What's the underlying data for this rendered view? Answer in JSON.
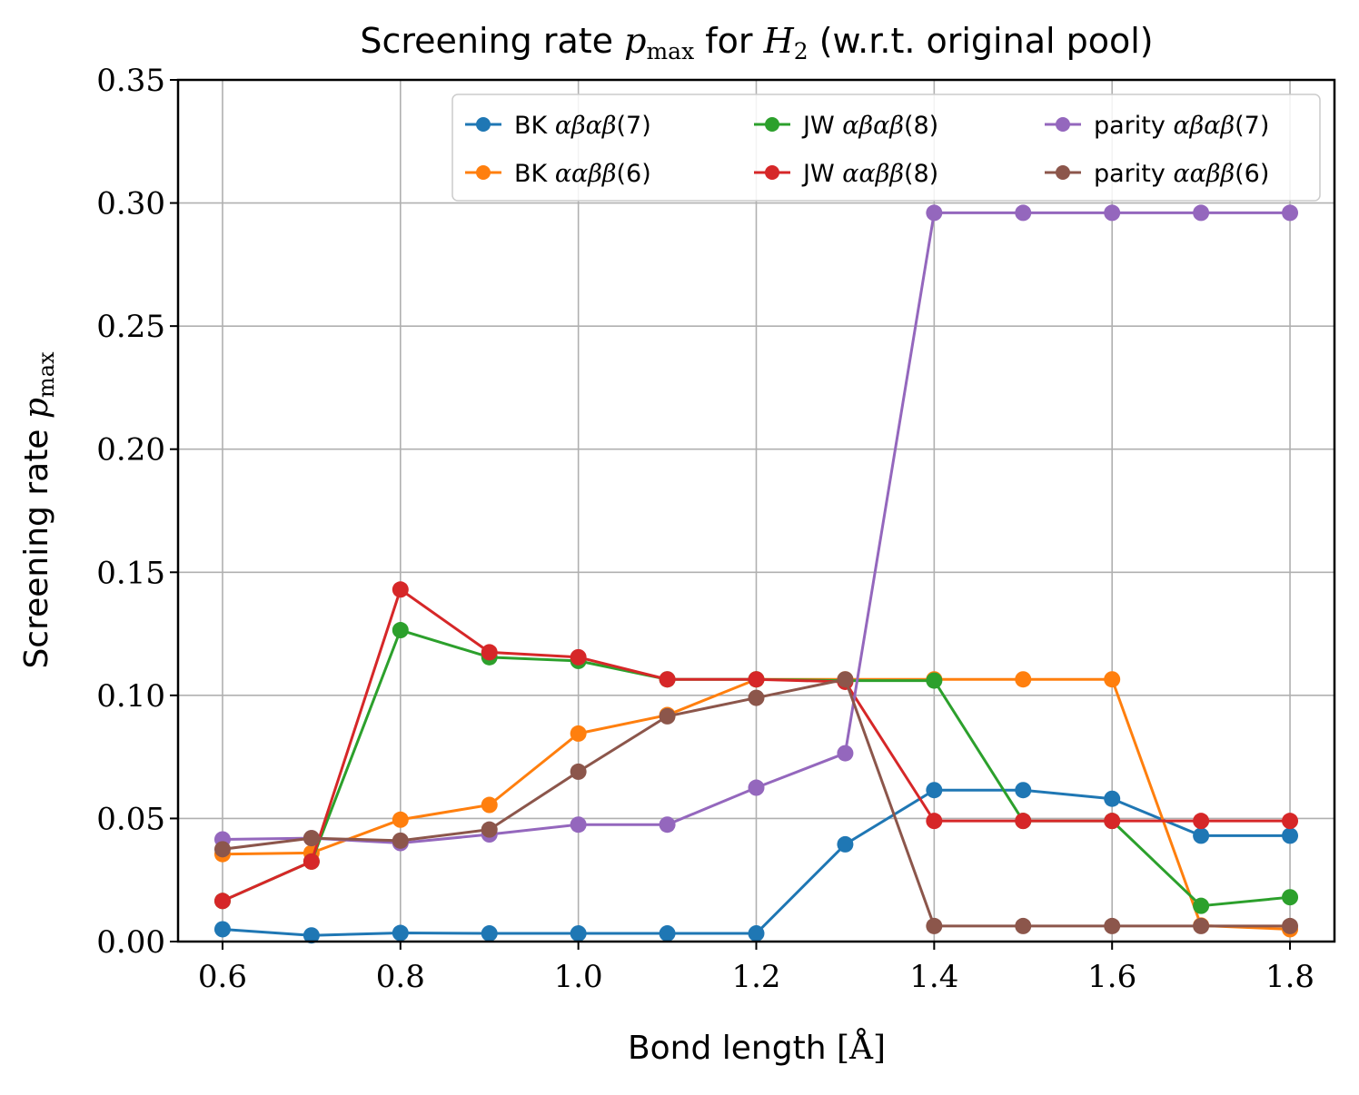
{
  "chart_data": {
    "type": "line",
    "title": "Screening rate p_max for H_2 (w.r.t. original pool)",
    "title_parts": [
      "Screening rate ",
      "p",
      "max",
      " for ",
      "H",
      "2",
      " (w.r.t. original pool)"
    ],
    "xlabel": "Bond length [Å]",
    "xlabel_parts": [
      "Bond length ",
      "[Å]"
    ],
    "ylabel": "Screening rate p_max",
    "ylabel_parts": [
      "Screening rate ",
      "p",
      "max"
    ],
    "xlim": [
      0.55,
      1.85
    ],
    "ylim": [
      0.0,
      0.35
    ],
    "xticks": [
      "0.6",
      "0.8",
      "1.0",
      "1.2",
      "1.4",
      "1.6",
      "1.8"
    ],
    "yticks": [
      "0.00",
      "0.05",
      "0.10",
      "0.15",
      "0.20",
      "0.25",
      "0.30",
      "0.35"
    ],
    "grid": true,
    "legend_position": "upper-right",
    "x": [
      0.6,
      0.7,
      0.8,
      0.9,
      1.0,
      1.1,
      1.2,
      1.3,
      1.4,
      1.5,
      1.6,
      1.7,
      1.8
    ],
    "series": [
      {
        "name": "BK αβαβ(7)",
        "label_prefix": "BK ",
        "label_math": "αβαβ",
        "label_suffix": "(7)",
        "color": "#1f77b4",
        "values": [
          0.005,
          0.0025,
          0.0035,
          0.0033,
          0.0033,
          0.0033,
          0.0033,
          0.0395,
          0.0615,
          0.0615,
          0.058,
          0.043,
          0.043
        ]
      },
      {
        "name": "BK ααββ(6)",
        "label_prefix": "BK ",
        "label_math": "ααββ",
        "label_suffix": "(6)",
        "color": "#ff7f0e",
        "values": [
          0.0355,
          0.036,
          0.0495,
          0.0555,
          0.0845,
          0.092,
          0.1065,
          0.1065,
          0.1065,
          0.1065,
          0.1065,
          0.0065,
          0.005
        ]
      },
      {
        "name": "JW αβαβ(8)",
        "label_prefix": "JW ",
        "label_math": "αβαβ",
        "label_suffix": "(8)",
        "color": "#2ca02c",
        "values": [
          0.0165,
          0.0325,
          0.1265,
          0.1155,
          0.114,
          0.1065,
          0.1065,
          0.106,
          0.106,
          0.049,
          0.049,
          0.0145,
          0.018
        ]
      },
      {
        "name": "JW ααββ(8)",
        "label_prefix": "JW ",
        "label_math": "ααββ",
        "label_suffix": "(8)",
        "color": "#d62728",
        "values": [
          0.0165,
          0.0325,
          0.143,
          0.1175,
          0.1155,
          0.1065,
          0.1065,
          0.1055,
          0.049,
          0.049,
          0.049,
          0.049,
          0.049
        ]
      },
      {
        "name": "parity αβαβ(7)",
        "label_prefix": "parity ",
        "label_math": "αβαβ",
        "label_suffix": "(7)",
        "color": "#9467bd",
        "values": [
          0.0415,
          0.042,
          0.04,
          0.0435,
          0.0475,
          0.0475,
          0.0625,
          0.0765,
          0.296,
          0.296,
          0.296,
          0.296,
          0.296
        ]
      },
      {
        "name": "parity ααββ(6)",
        "label_prefix": "parity ",
        "label_math": "ααββ",
        "label_suffix": "(6)",
        "color": "#8c564b",
        "values": [
          0.0375,
          0.042,
          0.041,
          0.0455,
          0.069,
          0.0915,
          0.099,
          0.1065,
          0.0063,
          0.0063,
          0.0063,
          0.0063,
          0.0063
        ]
      }
    ]
  }
}
